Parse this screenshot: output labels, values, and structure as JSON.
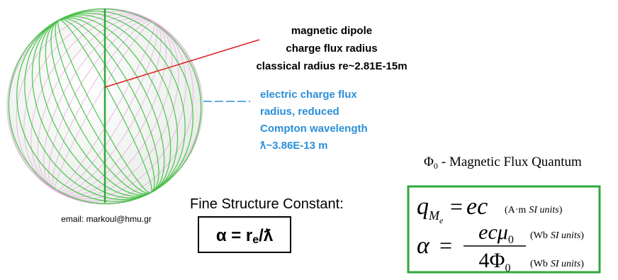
{
  "dipole_label": {
    "lines": [
      "magnetic dipole",
      "charge flux radius",
      "classical radius re~2.81E-15m"
    ]
  },
  "electric_label": {
    "lines": [
      "electric charge flux",
      "radius, reduced",
      "Compton wavelength",
      "ƛ~3.86E-13 m"
    ]
  },
  "email": "email: markoul@hmu.gr",
  "fine_structure": {
    "title": "Fine Structure Constant:",
    "formula": {
      "lhs": "α = r",
      "sub": "e",
      "rhs": "/ƛ"
    }
  },
  "flux_quantum": {
    "symbol": "Φ",
    "sub": "0",
    "text": "- Magnetic Flux Quantum"
  },
  "equations": {
    "charge": {
      "symbol": "q",
      "sub": "M",
      "subsub": "e",
      "equals": "=",
      "rhs": "ec",
      "units": {
        "open": "(A·m",
        "italic": "SI units",
        "close": ")"
      }
    },
    "alpha": {
      "symbol": "α",
      "equals": "=",
      "numerator": "ecμ",
      "numerator_sub": "0",
      "denominator": "4Φ",
      "denominator_sub": "0",
      "units": [
        {
          "open": "(Wb",
          "italic": "SI units",
          "close": ")"
        },
        {
          "open": "(Wb",
          "italic": "SI units",
          "close": ")"
        }
      ]
    }
  }
}
